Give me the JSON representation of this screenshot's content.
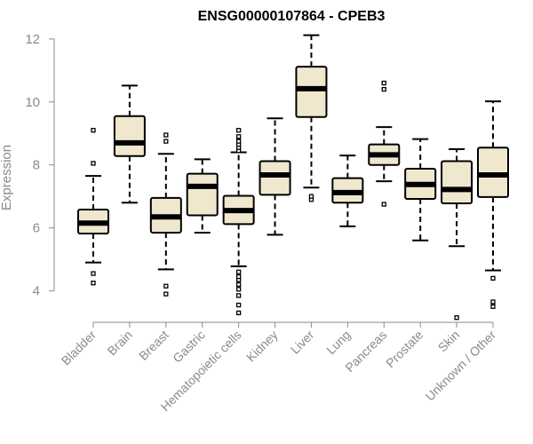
{
  "chart_data": {
    "type": "boxplot",
    "title": "ENSG00000107864 - CPEB3",
    "ylabel": "Expression",
    "xlabel": "",
    "ylim": [
      3.0,
      12.25
    ],
    "yticks": [
      4,
      6,
      8,
      10,
      12
    ],
    "box_fill": "#efe8cf",
    "categories": [
      "Bladder",
      "Brain",
      "Breast",
      "Gastric",
      "Hematopoietic cells",
      "Kidney",
      "Liver",
      "Lung",
      "Pancreas",
      "Prostate",
      "Skin",
      "Unknown / Other"
    ],
    "boxes": [
      {
        "whisker_low": 4.9,
        "q1": 5.82,
        "median": 6.15,
        "q3": 6.58,
        "whisker_high": 7.65,
        "outliers": [
          4.25,
          4.55,
          8.05,
          9.1
        ]
      },
      {
        "whisker_low": 6.8,
        "q1": 8.28,
        "median": 8.7,
        "q3": 9.55,
        "whisker_high": 10.52,
        "outliers": []
      },
      {
        "whisker_low": 4.68,
        "q1": 5.85,
        "median": 6.35,
        "q3": 6.95,
        "whisker_high": 8.35,
        "outliers": [
          3.9,
          4.15,
          8.75,
          8.95
        ]
      },
      {
        "whisker_low": 5.85,
        "q1": 6.4,
        "median": 7.32,
        "q3": 7.72,
        "whisker_high": 8.18,
        "outliers": []
      },
      {
        "whisker_low": 4.78,
        "q1": 6.12,
        "median": 6.55,
        "q3": 7.02,
        "whisker_high": 8.4,
        "outliers": [
          3.3,
          3.55,
          3.85,
          4.05,
          4.2,
          4.35,
          4.45,
          4.6,
          8.45,
          8.55,
          8.65,
          8.75,
          8.9,
          9.1
        ]
      },
      {
        "whisker_low": 5.78,
        "q1": 7.05,
        "median": 7.68,
        "q3": 8.12,
        "whisker_high": 9.48,
        "outliers": []
      },
      {
        "whisker_low": 7.28,
        "q1": 9.52,
        "median": 10.42,
        "q3": 11.12,
        "whisker_high": 12.12,
        "outliers": [
          6.9,
          7.0
        ]
      },
      {
        "whisker_low": 6.05,
        "q1": 6.8,
        "median": 7.12,
        "q3": 7.58,
        "whisker_high": 8.3,
        "outliers": []
      },
      {
        "whisker_low": 7.48,
        "q1": 8.0,
        "median": 8.32,
        "q3": 8.65,
        "whisker_high": 9.2,
        "outliers": [
          6.75,
          10.4,
          10.6
        ]
      },
      {
        "whisker_low": 5.6,
        "q1": 6.92,
        "median": 7.38,
        "q3": 7.88,
        "whisker_high": 8.82,
        "outliers": []
      },
      {
        "whisker_low": 5.42,
        "q1": 6.78,
        "median": 7.22,
        "q3": 8.12,
        "whisker_high": 8.5,
        "outliers": [
          3.15
        ]
      },
      {
        "whisker_low": 4.65,
        "q1": 6.98,
        "median": 7.68,
        "q3": 8.55,
        "whisker_high": 10.02,
        "outliers": [
          3.5,
          3.65,
          4.4
        ]
      }
    ]
  }
}
